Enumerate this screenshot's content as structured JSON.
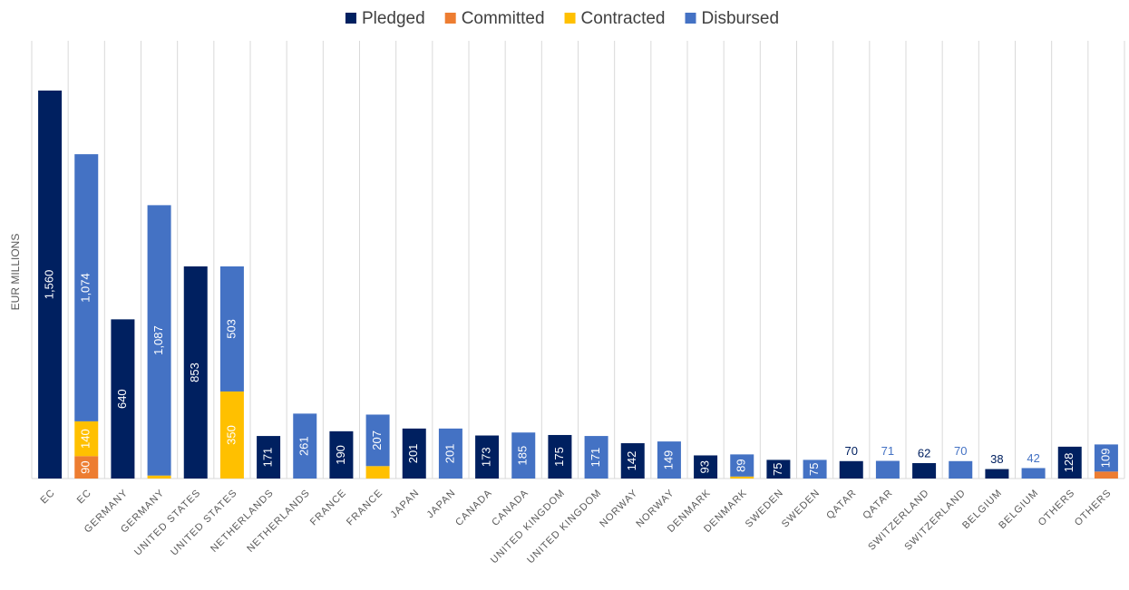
{
  "chart_data": {
    "type": "bar",
    "stacked": true,
    "y_label": "EUR MILLIONS",
    "categories": [
      "EC",
      "EC",
      "GERMANY",
      "GERMANY",
      "UNITED STATES",
      "UNITED STATES",
      "NETHERLANDS",
      "NETHERLANDS",
      "FRANCE",
      "FRANCE",
      "JAPAN",
      "JAPAN",
      "CANADA",
      "CANADA",
      "UNITED KINGDOM",
      "UNITED KINGDOM",
      "NORWAY",
      "NORWAY",
      "DENMARK",
      "DENMARK",
      "SWEDEN",
      "SWEDEN",
      "QATAR",
      "QATAR",
      "SWITZERLAND",
      "SWITZERLAND",
      "BELGIUM",
      "BELGIUM",
      "OTHERS",
      "OTHERS"
    ],
    "series": [
      {
        "name": "Pledged",
        "color": "#002060",
        "values": [
          1560,
          null,
          640,
          null,
          853,
          null,
          171,
          null,
          190,
          null,
          201,
          null,
          173,
          null,
          175,
          null,
          142,
          null,
          93,
          null,
          75,
          null,
          70,
          null,
          62,
          null,
          38,
          null,
          128,
          null
        ],
        "value_labels": [
          "1,560",
          null,
          "640",
          null,
          "853",
          null,
          "171",
          null,
          "190",
          null,
          "201",
          null,
          "173",
          null,
          "175",
          null,
          "142",
          null,
          "93",
          null,
          "75",
          null,
          "70",
          null,
          "62",
          null,
          "38",
          null,
          "128",
          null
        ]
      },
      {
        "name": "Committed",
        "color": "#ED7D31",
        "values": [
          null,
          90,
          null,
          null,
          null,
          null,
          null,
          null,
          null,
          null,
          null,
          null,
          null,
          null,
          null,
          null,
          null,
          null,
          null,
          null,
          null,
          null,
          null,
          null,
          null,
          null,
          null,
          null,
          null,
          28
        ],
        "value_labels": [
          null,
          "90",
          null,
          null,
          null,
          null,
          null,
          null,
          null,
          null,
          null,
          null,
          null,
          null,
          null,
          null,
          null,
          null,
          null,
          null,
          null,
          null,
          null,
          null,
          null,
          null,
          null,
          null,
          null,
          null
        ]
      },
      {
        "name": "Contracted",
        "color": "#FFC000",
        "values": [
          null,
          140,
          null,
          12,
          null,
          350,
          null,
          null,
          null,
          50,
          null,
          null,
          null,
          null,
          null,
          null,
          null,
          null,
          null,
          8,
          null,
          null,
          null,
          null,
          null,
          null,
          null,
          null,
          null,
          null
        ],
        "value_labels": [
          null,
          "140",
          null,
          null,
          null,
          "350",
          null,
          null,
          null,
          null,
          null,
          null,
          null,
          null,
          null,
          null,
          null,
          null,
          null,
          null,
          null,
          null,
          null,
          null,
          null,
          null,
          null,
          null,
          null,
          null
        ]
      },
      {
        "name": "Disbursed",
        "color": "#4472C4",
        "values": [
          null,
          1074,
          null,
          1087,
          null,
          503,
          null,
          261,
          null,
          207,
          null,
          201,
          null,
          185,
          null,
          171,
          null,
          149,
          null,
          89,
          null,
          75,
          null,
          71,
          null,
          70,
          null,
          42,
          null,
          109
        ],
        "value_labels": [
          null,
          "1,074",
          null,
          "1,087",
          null,
          "503",
          null,
          "261",
          null,
          "207",
          null,
          "201",
          null,
          "185",
          null,
          "171",
          null,
          "149",
          null,
          "89",
          null,
          "75",
          null,
          "71",
          null,
          "70",
          null,
          "42",
          null,
          "109"
        ]
      }
    ],
    "ylim": [
      0,
      1760
    ],
    "legend": "top"
  }
}
